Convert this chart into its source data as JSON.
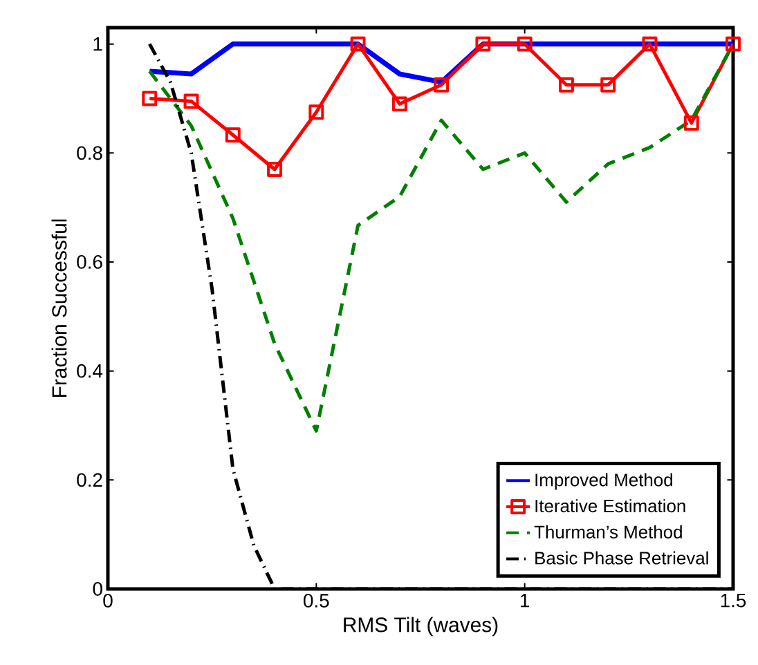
{
  "chart_data": {
    "type": "line",
    "xlabel": "RMS Tilt (waves)",
    "ylabel": "Fraction Successful",
    "xlim": [
      0,
      1.5
    ],
    "ylim": [
      0,
      1.03
    ],
    "xticks": [
      0,
      0.5,
      1,
      1.5
    ],
    "yticks": [
      0,
      0.2,
      0.4,
      0.6,
      0.8,
      1
    ],
    "grid": false,
    "legend": "bottom right",
    "series": [
      {
        "name": "Improved Method",
        "color": "#0000ff",
        "line_style": "solid",
        "marker": "none",
        "x": [
          0.1,
          0.2,
          0.3,
          0.4,
          0.5,
          0.6,
          0.7,
          0.8,
          0.9,
          1.0,
          1.1,
          1.2,
          1.3,
          1.4,
          1.5
        ],
        "values": [
          0.95,
          0.945,
          1,
          1,
          1,
          1,
          0.945,
          0.93,
          1,
          1,
          1,
          1,
          1,
          1,
          1
        ]
      },
      {
        "name": "Iterative Estimation",
        "color": "#ff0000",
        "line_style": "solid",
        "marker": "square",
        "x": [
          0.1,
          0.2,
          0.3,
          0.4,
          0.5,
          0.6,
          0.7,
          0.8,
          0.9,
          1.0,
          1.1,
          1.2,
          1.3,
          1.4,
          1.5
        ],
        "values": [
          0.9,
          0.895,
          0.833,
          0.77,
          0.875,
          1,
          0.89,
          0.925,
          1,
          1,
          0.925,
          0.925,
          1,
          0.855,
          1
        ]
      },
      {
        "name": "Thurman’s Method",
        "color": "#008000",
        "line_style": "dashed",
        "marker": "none",
        "x": [
          0.1,
          0.2,
          0.3,
          0.4,
          0.5,
          0.6,
          0.7,
          0.8,
          0.9,
          1.0,
          1.1,
          1.2,
          1.3,
          1.4,
          1.5
        ],
        "values": [
          0.95,
          0.85,
          0.68,
          0.45,
          0.29,
          0.667,
          0.72,
          0.86,
          0.77,
          0.8,
          0.71,
          0.78,
          0.81,
          0.86,
          1
        ]
      },
      {
        "name": "Basic Phase Retrieval",
        "color": "#000000",
        "line_style": "dashdot",
        "marker": "none",
        "x": [
          0.1,
          0.15,
          0.2,
          0.25,
          0.3,
          0.35,
          0.4,
          0.5,
          0.6,
          0.7,
          0.8,
          0.9,
          1.0,
          1.1,
          1.2,
          1.3,
          1.4,
          1.5
        ],
        "values": [
          1,
          0.93,
          0.8,
          0.55,
          0.22,
          0.08,
          0,
          0,
          0,
          0,
          0,
          0,
          0,
          0,
          0,
          0,
          0,
          0
        ]
      }
    ]
  }
}
